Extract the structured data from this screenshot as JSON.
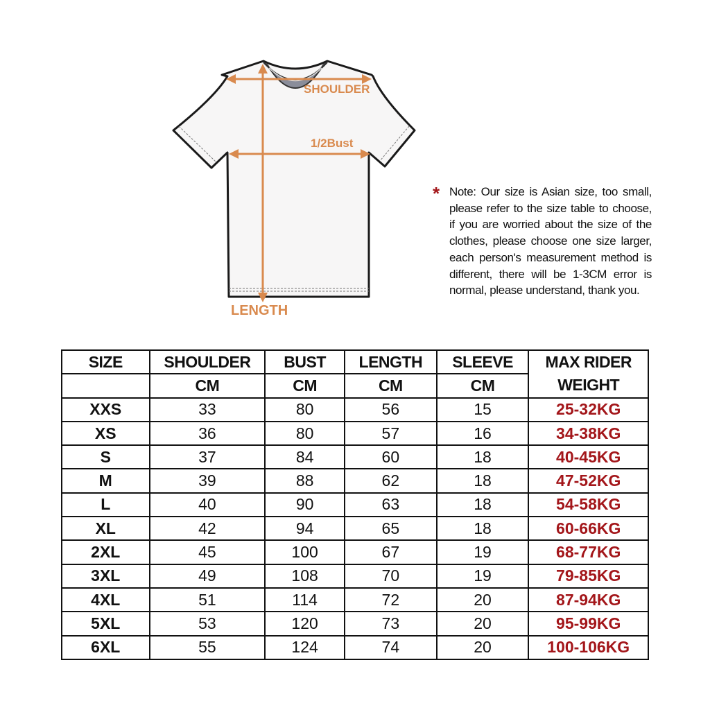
{
  "diagram": {
    "shoulder_label": "SHOULDER",
    "bust_label": "1/2Bust",
    "length_label": "LENGTH",
    "accent_color": "#d98a4e"
  },
  "note": {
    "asterisk": "*",
    "text": "Note: Our size is Asian size, too small, please refer to the size table to choose, if you are worried about the size of the clothes, please choose one size larger, each person's measurement method is different, there will be 1-3CM error is normal, please understand, thank you."
  },
  "table": {
    "headers": [
      "SIZE",
      "SHOULDER",
      "BUST",
      "LENGTH",
      "SLEEVE",
      "MAX RIDER",
      "WEIGHT"
    ],
    "units": [
      "CM",
      "CM",
      "CM",
      "CM"
    ],
    "weight_color": "#a3161a",
    "rows": [
      [
        "XXS",
        "33",
        "80",
        "56",
        "15",
        "25-32KG"
      ],
      [
        "XS",
        "36",
        "80",
        "57",
        "16",
        "34-38KG"
      ],
      [
        "S",
        "37",
        "84",
        "60",
        "18",
        "40-45KG"
      ],
      [
        "M",
        "39",
        "88",
        "62",
        "18",
        "47-52KG"
      ],
      [
        "L",
        "40",
        "90",
        "63",
        "18",
        "54-58KG"
      ],
      [
        "XL",
        "42",
        "94",
        "65",
        "18",
        "60-66KG"
      ],
      [
        "2XL",
        "45",
        "100",
        "67",
        "19",
        "68-77KG"
      ],
      [
        "3XL",
        "49",
        "108",
        "70",
        "19",
        "79-85KG"
      ],
      [
        "4XL",
        "51",
        "114",
        "72",
        "20",
        "87-94KG"
      ],
      [
        "5XL",
        "53",
        "120",
        "73",
        "20",
        "95-99KG"
      ],
      [
        "6XL",
        "55",
        "124",
        "74",
        "20",
        "100-106KG"
      ]
    ]
  }
}
